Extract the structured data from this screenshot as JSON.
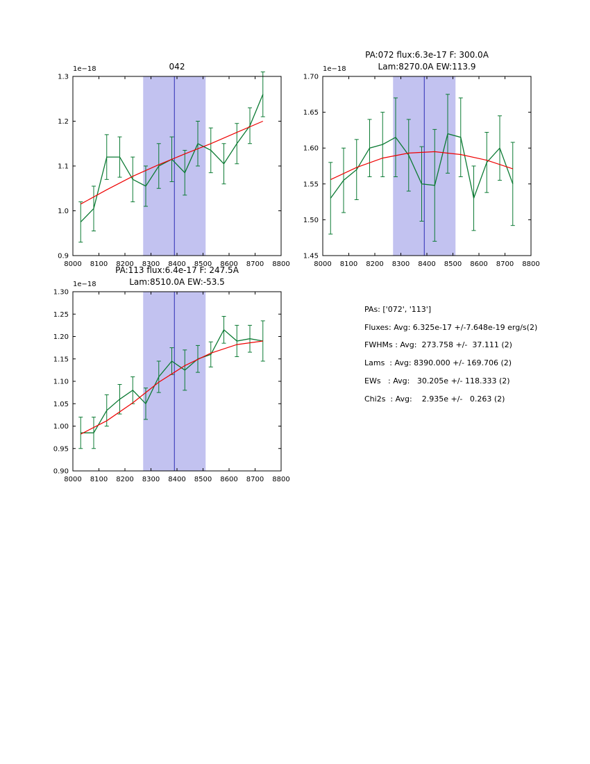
{
  "figure": {
    "background": "#ffffff"
  },
  "stats_panel": {
    "lines": [
      "PAs: ['072', '113']",
      "Fluxes: Avg: 6.325e-17 +/-7.648e-19 erg/s(2)",
      "FWHMs : Avg:  273.758 +/-  37.111 (2)",
      "Lams  : Avg: 8390.000 +/- 169.706 (2)",
      "EWs   : Avg:   30.205e +/- 118.333 (2)",
      "Chi2s  : Avg:    2.935e +/-   0.263 (2)"
    ]
  },
  "chart_data": [
    {
      "type": "line",
      "title": "042",
      "title_lines": [
        "042"
      ],
      "offset_text": "1e−18",
      "xlabel": "",
      "ylabel": "",
      "xlim": [
        8000,
        8800
      ],
      "ylim": [
        0.9,
        1.3
      ],
      "xticks": [
        8000,
        8100,
        8200,
        8300,
        8400,
        8500,
        8600,
        8700,
        8800
      ],
      "xtick_labels": [
        "8000",
        "8100",
        "8200",
        "8300",
        "8400",
        "8500",
        "8600",
        "8700",
        "8800"
      ],
      "yticks": [
        0.9,
        1.0,
        1.1,
        1.2,
        1.3
      ],
      "ytick_labels": [
        "0.9",
        "1.0",
        "1.1",
        "1.2",
        "1.3"
      ],
      "band": {
        "from": 8270,
        "to": 8510,
        "color": "#c2c2f0"
      },
      "vline": {
        "x": 8390,
        "color": "#2b2bb4"
      },
      "series": [
        {
          "name": "spectrum",
          "color": "#0b7a33",
          "x": [
            8030,
            8080,
            8130,
            8180,
            8230,
            8280,
            8330,
            8380,
            8430,
            8480,
            8530,
            8580,
            8630,
            8680,
            8730
          ],
          "y": [
            0.975,
            1.005,
            1.12,
            1.12,
            1.07,
            1.055,
            1.1,
            1.115,
            1.085,
            1.15,
            1.135,
            1.105,
            1.15,
            1.19,
            1.26
          ],
          "yerr": [
            0.045,
            0.05,
            0.05,
            0.045,
            0.05,
            0.045,
            0.05,
            0.05,
            0.05,
            0.05,
            0.05,
            0.045,
            0.045,
            0.04,
            0.05
          ]
        },
        {
          "name": "fit",
          "color": "#ee0000",
          "x": [
            8030,
            8130,
            8230,
            8330,
            8430,
            8530,
            8630,
            8730
          ],
          "y": [
            1.015,
            1.047,
            1.077,
            1.103,
            1.127,
            1.15,
            1.175,
            1.2
          ]
        }
      ]
    },
    {
      "type": "line",
      "title": "PA:072 flux:6.3e-17 F: 300.0A Lam:8270.0A EW:113.9",
      "title_lines": [
        "PA:072 flux:6.3e-17 F: 300.0A",
        "Lam:8270.0A EW:113.9"
      ],
      "offset_text": "1e−18",
      "xlabel": "",
      "ylabel": "",
      "xlim": [
        8000,
        8800
      ],
      "ylim": [
        1.45,
        1.7
      ],
      "xticks": [
        8000,
        8100,
        8200,
        8300,
        8400,
        8500,
        8600,
        8700,
        8800
      ],
      "xtick_labels": [
        "8000",
        "8100",
        "8200",
        "8300",
        "8400",
        "8500",
        "8600",
        "8700",
        "8800"
      ],
      "yticks": [
        1.45,
        1.5,
        1.55,
        1.6,
        1.65,
        1.7
      ],
      "ytick_labels": [
        "1.45",
        "1.50",
        "1.55",
        "1.60",
        "1.65",
        "1.70"
      ],
      "band": {
        "from": 8270,
        "to": 8510,
        "color": "#c2c2f0"
      },
      "vline": {
        "x": 8390,
        "color": "#2b2bb4"
      },
      "series": [
        {
          "name": "spectrum",
          "color": "#0b7a33",
          "x": [
            8030,
            8080,
            8130,
            8180,
            8230,
            8280,
            8330,
            8380,
            8430,
            8480,
            8530,
            8580,
            8630,
            8680,
            8730
          ],
          "y": [
            1.53,
            1.555,
            1.57,
            1.6,
            1.605,
            1.615,
            1.59,
            1.55,
            1.548,
            1.62,
            1.615,
            1.53,
            1.58,
            1.6,
            1.55
          ],
          "yerr": [
            0.05,
            0.045,
            0.042,
            0.04,
            0.045,
            0.055,
            0.05,
            0.052,
            0.078,
            0.055,
            0.055,
            0.045,
            0.042,
            0.045,
            0.058
          ]
        },
        {
          "name": "fit",
          "color": "#ee0000",
          "x": [
            8030,
            8130,
            8230,
            8330,
            8430,
            8530,
            8630,
            8730
          ],
          "y": [
            1.556,
            1.573,
            1.586,
            1.593,
            1.595,
            1.591,
            1.583,
            1.571
          ]
        }
      ]
    },
    {
      "type": "line",
      "title": "PA:113 flux:6.4e-17 F: 247.5A Lam:8510.0A EW:-53.5",
      "title_lines": [
        "PA:113 flux:6.4e-17 F: 247.5A",
        "Lam:8510.0A EW:-53.5"
      ],
      "offset_text": "1e−18",
      "xlabel": "",
      "ylabel": "",
      "xlim": [
        8000,
        8800
      ],
      "ylim": [
        0.9,
        1.3
      ],
      "xticks": [
        8000,
        8100,
        8200,
        8300,
        8400,
        8500,
        8600,
        8700,
        8800
      ],
      "xtick_labels": [
        "8000",
        "8100",
        "8200",
        "8300",
        "8400",
        "8500",
        "8600",
        "8700",
        "8800"
      ],
      "yticks": [
        0.9,
        0.95,
        1.0,
        1.05,
        1.1,
        1.15,
        1.2,
        1.25,
        1.3
      ],
      "ytick_labels": [
        "0.90",
        "0.95",
        "1.00",
        "1.05",
        "1.10",
        "1.15",
        "1.20",
        "1.25",
        "1.30"
      ],
      "band": {
        "from": 8270,
        "to": 8510,
        "color": "#c2c2f0"
      },
      "vline": {
        "x": 8390,
        "color": "#2b2bb4"
      },
      "series": [
        {
          "name": "spectrum",
          "color": "#0b7a33",
          "x": [
            8030,
            8080,
            8130,
            8180,
            8230,
            8280,
            8330,
            8380,
            8430,
            8480,
            8530,
            8580,
            8630,
            8680,
            8730
          ],
          "y": [
            0.985,
            0.985,
            1.035,
            1.06,
            1.08,
            1.05,
            1.11,
            1.145,
            1.125,
            1.15,
            1.16,
            1.215,
            1.19,
            1.195,
            1.19
          ],
          "yerr": [
            0.035,
            0.035,
            0.035,
            0.033,
            0.03,
            0.035,
            0.035,
            0.03,
            0.045,
            0.03,
            0.028,
            0.03,
            0.035,
            0.03,
            0.045
          ]
        },
        {
          "name": "fit",
          "color": "#ee0000",
          "x": [
            8030,
            8130,
            8230,
            8330,
            8430,
            8530,
            8630,
            8730
          ],
          "y": [
            0.982,
            1.012,
            1.052,
            1.098,
            1.135,
            1.163,
            1.182,
            1.19
          ]
        }
      ]
    }
  ]
}
